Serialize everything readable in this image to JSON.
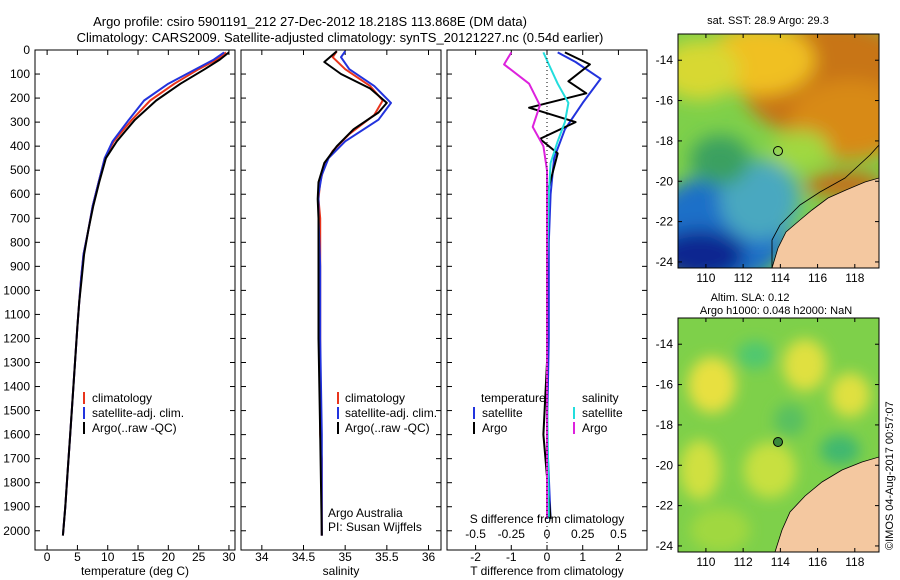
{
  "header": {
    "line1": "Argo profile: csiro 5901191_212 27-Dec-2012 18.218S 113.868E (DM data)",
    "line2": "Climatology: CARS2009. Satellite-adjusted climatology: synTS_20121227.nc (0.54d earlier)"
  },
  "side_stamp": "©IMOS 04-Aug-2017 00:57:07",
  "colors": {
    "climatology": "#e8341c",
    "satellite": "#2233dd",
    "argo": "#000000",
    "sal_satellite": "#22dddd",
    "sal_argo": "#dd22dd",
    "land": "#f4c8a0"
  },
  "chart_data": [
    {
      "type": "line",
      "id": "temperature",
      "xlabel": "temperature (deg C)",
      "ylabel": "",
      "xlim": [
        -2,
        31
      ],
      "ylim": [
        2080,
        0
      ],
      "xticks": [
        "0",
        "5",
        "10",
        "15",
        "20",
        "25",
        "30"
      ],
      "xtick_values": [
        0,
        5,
        10,
        15,
        20,
        25,
        30
      ],
      "yticks": [
        "0",
        "100",
        "200",
        "300",
        "400",
        "500",
        "600",
        "700",
        "800",
        "900",
        "1000",
        "1100",
        "1200",
        "1300",
        "1400",
        "1500",
        "1600",
        "1700",
        "1800",
        "1900",
        "2000"
      ],
      "legend": [
        "climatology",
        "satellite-adj. clim.",
        "Argo(..raw -QC)"
      ],
      "series": [
        {
          "name": "climatology",
          "color": "#e8341c",
          "points": [
            [
              29.5,
              10
            ],
            [
              28,
              40
            ],
            [
              25,
              80
            ],
            [
              21,
              140
            ],
            [
              17,
              210
            ],
            [
              14,
              290
            ],
            [
              11,
              380
            ],
            [
              9.5,
              450
            ],
            [
              8.5,
              550
            ],
            [
              7.5,
              650
            ],
            [
              6.8,
              750
            ],
            [
              6,
              850
            ],
            [
              5.6,
              950
            ],
            [
              5.3,
              1050
            ],
            [
              5,
              1150
            ],
            [
              4.6,
              1300
            ],
            [
              4.2,
              1450
            ],
            [
              3.8,
              1600
            ],
            [
              3.4,
              1750
            ],
            [
              3,
              1900
            ],
            [
              2.6,
              2020
            ]
          ]
        },
        {
          "name": "satellite-adj. clim.",
          "color": "#2233dd",
          "points": [
            [
              29.2,
              10
            ],
            [
              27.5,
              40
            ],
            [
              24.5,
              80
            ],
            [
              20,
              140
            ],
            [
              16,
              210
            ],
            [
              13.5,
              290
            ],
            [
              10.8,
              380
            ],
            [
              9.5,
              450
            ],
            [
              8.5,
              550
            ],
            [
              7.5,
              650
            ],
            [
              6.8,
              750
            ],
            [
              6,
              850
            ],
            [
              5.6,
              950
            ],
            [
              5.3,
              1050
            ],
            [
              5,
              1150
            ],
            [
              4.6,
              1300
            ],
            [
              4.2,
              1450
            ],
            [
              3.8,
              1600
            ],
            [
              3.4,
              1750
            ],
            [
              3,
              1900
            ],
            [
              2.6,
              2020
            ]
          ]
        },
        {
          "name": "Argo(..raw -QC)",
          "color": "#000000",
          "points": [
            [
              30,
              10
            ],
            [
              28.5,
              40
            ],
            [
              26,
              80
            ],
            [
              22,
              140
            ],
            [
              18,
              210
            ],
            [
              14.5,
              290
            ],
            [
              11.5,
              380
            ],
            [
              9.7,
              450
            ],
            [
              8.6,
              550
            ],
            [
              7.6,
              650
            ],
            [
              6.8,
              750
            ],
            [
              6.1,
              850
            ],
            [
              5.7,
              950
            ],
            [
              5.3,
              1050
            ],
            [
              5,
              1150
            ],
            [
              4.6,
              1300
            ],
            [
              4.2,
              1450
            ],
            [
              3.8,
              1600
            ],
            [
              3.4,
              1750
            ],
            [
              3,
              1900
            ],
            [
              2.6,
              2020
            ]
          ]
        }
      ]
    },
    {
      "type": "line",
      "id": "salinity",
      "xlabel": "salinity",
      "ylabel": "",
      "xlim": [
        33.75,
        36.15
      ],
      "ylim": [
        2080,
        0
      ],
      "xticks": [
        "34",
        "34.5",
        "35",
        "35.5",
        "36"
      ],
      "xtick_values": [
        34,
        34.5,
        35,
        35.5,
        36
      ],
      "legend": [
        "climatology",
        "satellite-adj. clim.",
        "Argo(..raw -QC)"
      ],
      "note_lines": [
        "Argo Australia",
        "PI: Susan Wijffels"
      ],
      "series": [
        {
          "name": "climatology",
          "color": "#e8341c",
          "points": [
            [
              34.9,
              5
            ],
            [
              34.85,
              30
            ],
            [
              35.0,
              80
            ],
            [
              35.3,
              150
            ],
            [
              35.45,
              210
            ],
            [
              35.35,
              270
            ],
            [
              35.05,
              350
            ],
            [
              34.85,
              420
            ],
            [
              34.75,
              480
            ],
            [
              34.7,
              550
            ],
            [
              34.68,
              620
            ],
            [
              34.7,
              700
            ],
            [
              34.7,
              900
            ],
            [
              34.7,
              1200
            ],
            [
              34.7,
              1600
            ],
            [
              34.72,
              1700
            ],
            [
              34.72,
              2020
            ]
          ]
        },
        {
          "name": "satellite-adj. clim.",
          "color": "#2233dd",
          "points": [
            [
              35.0,
              5
            ],
            [
              34.95,
              30
            ],
            [
              35.05,
              80
            ],
            [
              35.35,
              150
            ],
            [
              35.55,
              220
            ],
            [
              35.4,
              290
            ],
            [
              35.0,
              380
            ],
            [
              34.8,
              450
            ],
            [
              34.72,
              520
            ],
            [
              34.68,
              600
            ],
            [
              34.68,
              700
            ],
            [
              34.7,
              900
            ],
            [
              34.7,
              1200
            ],
            [
              34.72,
              1600
            ],
            [
              34.72,
              2020
            ]
          ]
        },
        {
          "name": "Argo(..raw -QC)",
          "color": "#000000",
          "points": [
            [
              34.9,
              5
            ],
            [
              34.75,
              50
            ],
            [
              34.95,
              100
            ],
            [
              35.3,
              160
            ],
            [
              35.5,
              220
            ],
            [
              35.4,
              260
            ],
            [
              35.1,
              330
            ],
            [
              34.9,
              400
            ],
            [
              34.75,
              470
            ],
            [
              34.68,
              550
            ],
            [
              34.67,
              620
            ],
            [
              34.68,
              700
            ],
            [
              34.68,
              900
            ],
            [
              34.68,
              1200
            ],
            [
              34.7,
              1600
            ],
            [
              34.72,
              2020
            ]
          ]
        }
      ]
    },
    {
      "type": "line",
      "id": "difference",
      "xlabel": "T difference from climatology",
      "xlabel_top": "S difference from climatology",
      "xlim": [
        -2.8,
        2.8
      ],
      "ylim": [
        2080,
        0
      ],
      "xticks": [
        "-2",
        "-1",
        "0",
        "1",
        "2"
      ],
      "xtick_values": [
        -2,
        -1,
        0,
        1,
        2
      ],
      "top_ticks": [
        "-0.5",
        "-0.25",
        "0",
        "0.25",
        "0.5"
      ],
      "top_tick_values": [
        -2,
        -1,
        0,
        1,
        2
      ],
      "legend_headers": [
        "temperature",
        "salinity"
      ],
      "legend": [
        "satellite",
        "Argo",
        "satellite",
        "Argo"
      ],
      "series": [
        {
          "name": "satellite",
          "color": "#2233dd",
          "points": [
            [
              0.3,
              10
            ],
            [
              0.8,
              50
            ],
            [
              1.5,
              120
            ],
            [
              1.0,
              220
            ],
            [
              0.5,
              330
            ],
            [
              0.2,
              450
            ],
            [
              0.1,
              600
            ],
            [
              0.05,
              800
            ],
            [
              0.05,
              1200
            ],
            [
              0,
              1600
            ],
            [
              0.1,
              1950
            ]
          ]
        },
        {
          "name": "Argo",
          "color": "#000000",
          "points": [
            [
              0.5,
              10
            ],
            [
              1.2,
              60
            ],
            [
              0.6,
              130
            ],
            [
              1.1,
              180
            ],
            [
              -0.5,
              240
            ],
            [
              0.8,
              300
            ],
            [
              -0.2,
              370
            ],
            [
              0.3,
              430
            ],
            [
              0,
              600
            ],
            [
              0,
              900
            ],
            [
              0,
              1300
            ],
            [
              -0.1,
              1600
            ],
            [
              0.1,
              1950
            ]
          ]
        },
        {
          "name": "satellite",
          "color": "#22dddd",
          "points": [
            [
              -0.1,
              10
            ],
            [
              0.05,
              60
            ],
            [
              0.3,
              140
            ],
            [
              0.6,
              220
            ],
            [
              0.5,
              300
            ],
            [
              0.3,
              380
            ],
            [
              0.1,
              470
            ],
            [
              0.05,
              600
            ],
            [
              0,
              900
            ],
            [
              0,
              1400
            ],
            [
              0.05,
              1950
            ]
          ]
        },
        {
          "name": "Argo",
          "color": "#dd22dd",
          "points": [
            [
              -1.0,
              10
            ],
            [
              -1.2,
              60
            ],
            [
              -0.5,
              140
            ],
            [
              -0.2,
              230
            ],
            [
              -0.4,
              320
            ],
            [
              -0.1,
              400
            ],
            [
              0,
              500
            ],
            [
              0,
              700
            ],
            [
              0,
              1000
            ],
            [
              0,
              1400
            ],
            [
              0,
              1950
            ]
          ]
        }
      ]
    },
    {
      "type": "heatmap",
      "id": "sst_map",
      "title": "sat. SST: 28.9 Argo: 29.3",
      "xticks": [
        "110",
        "112",
        "114",
        "116",
        "118"
      ],
      "yticks": [
        "-14",
        "-16",
        "-18",
        "-20",
        "-22",
        "-24"
      ],
      "float_lon": 113.868,
      "float_lat": -18.218
    },
    {
      "type": "heatmap",
      "id": "sla_map",
      "title_lines": [
        "Altim. SLA: 0.12",
        "Argo h1000: 0.048 h2000: NaN"
      ],
      "xticks": [
        "110",
        "112",
        "114",
        "116",
        "118"
      ],
      "yticks": [
        "-14",
        "-16",
        "-18",
        "-20",
        "-22",
        "-24"
      ],
      "float_lon": 113.868,
      "float_lat": -18.218
    }
  ]
}
